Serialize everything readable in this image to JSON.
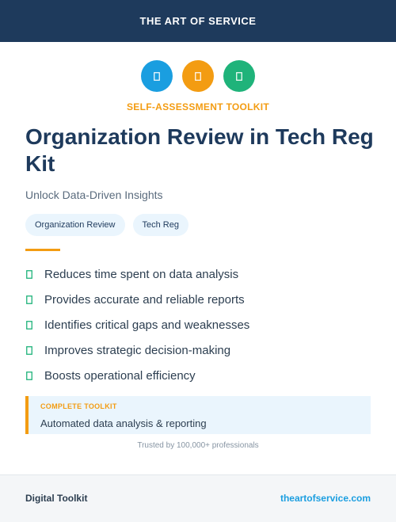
{
  "header": {
    "brand": "THE ART OF SERVICE"
  },
  "icons": [
    {
      "name": "glyph-icon",
      "color": "#1a9ee0"
    },
    {
      "name": "glyph-icon",
      "color": "#f39c12"
    },
    {
      "name": "glyph-icon",
      "color": "#1fb37a"
    }
  ],
  "hero": {
    "eyebrow": "SELF-ASSESSMENT TOOLKIT",
    "title": "Organization Review in Tech Reg Kit",
    "subtitle": "Unlock Data-Driven Insights"
  },
  "tags": [
    "Organization Review",
    "Tech Reg"
  ],
  "features": [
    "Reduces time spent on data analysis",
    "Provides accurate and reliable reports",
    "Identifies critical gaps and weaknesses",
    "Improves strategic decision-making",
    "Boosts operational efficiency"
  ],
  "callout": {
    "label": "COMPLETE TOOLKIT",
    "text": "Automated data analysis & reporting"
  },
  "trusted": "Trusted by 100,000+ professionals",
  "footer": {
    "left": "Digital Toolkit",
    "right": "theartofservice.com"
  },
  "colors": {
    "navy": "#1e3a5c",
    "accent": "#f39c12",
    "blue": "#1a9ee0",
    "green": "#1fb37a"
  }
}
